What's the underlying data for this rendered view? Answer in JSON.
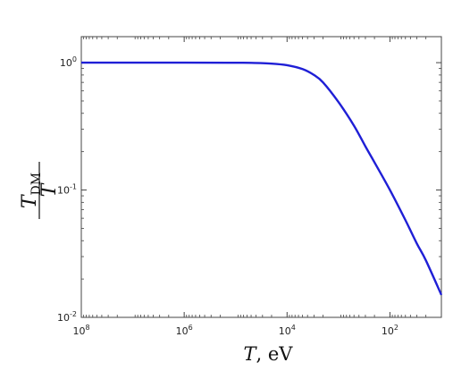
{
  "chart_data": {
    "type": "line",
    "xscale": "log",
    "yscale": "log",
    "x_reversed": true,
    "xlim": [
      100000000,
      10
    ],
    "ylim": [
      0.01,
      1.6
    ],
    "grid": false,
    "title": "",
    "xlabel": {
      "italic": "T",
      "rest": ", eV"
    },
    "ylabel": {
      "numerator_italic": "T",
      "numerator_sub": "DM",
      "denominator_italic": "T"
    },
    "x_ticks": [
      {
        "value": 100000000,
        "base": "10",
        "exp": "8"
      },
      {
        "value": 1000000,
        "base": "10",
        "exp": "6"
      },
      {
        "value": 10000,
        "base": "10",
        "exp": "4"
      },
      {
        "value": 100,
        "base": "10",
        "exp": "2"
      }
    ],
    "y_ticks": [
      {
        "value": 1,
        "base": "10",
        "exp": "0"
      },
      {
        "value": 0.1,
        "base": "10",
        "exp": "-1"
      },
      {
        "value": 0.01,
        "base": "10",
        "exp": "-2"
      }
    ],
    "series": [
      {
        "color": "#1f1fd6",
        "points": [
          {
            "x": 100000000,
            "y": 1.0
          },
          {
            "x": 1000000,
            "y": 1.0
          },
          {
            "x": 100000,
            "y": 0.998
          },
          {
            "x": 50000,
            "y": 0.996
          },
          {
            "x": 20000,
            "y": 0.983
          },
          {
            "x": 10000,
            "y": 0.955
          },
          {
            "x": 5000,
            "y": 0.89
          },
          {
            "x": 3000,
            "y": 0.8
          },
          {
            "x": 2000,
            "y": 0.7
          },
          {
            "x": 1000,
            "y": 0.49
          },
          {
            "x": 500,
            "y": 0.32
          },
          {
            "x": 300,
            "y": 0.22
          },
          {
            "x": 200,
            "y": 0.165
          },
          {
            "x": 100,
            "y": 0.1
          },
          {
            "x": 50,
            "y": 0.058
          },
          {
            "x": 30,
            "y": 0.038
          },
          {
            "x": 20,
            "y": 0.028
          },
          {
            "x": 10,
            "y": 0.015
          }
        ]
      }
    ]
  }
}
